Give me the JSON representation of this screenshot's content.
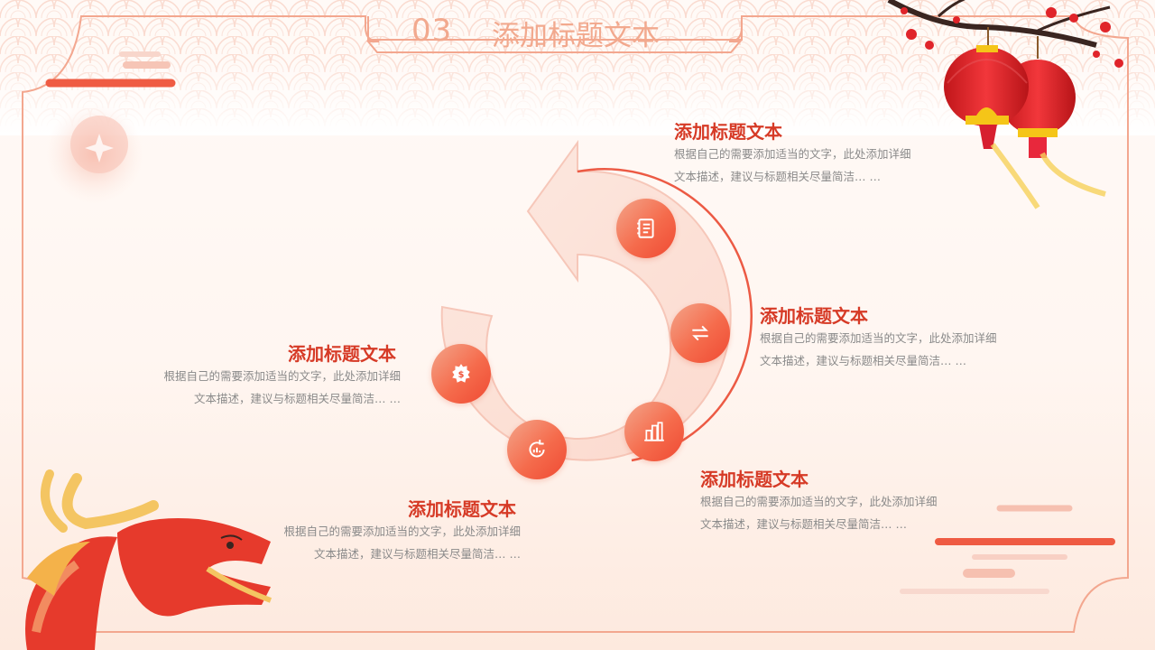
{
  "header": {
    "number": "03",
    "title": "添加标题文本"
  },
  "items": [
    {
      "title": "添加标题文本",
      "desc_line1": "根据自己的需要添加适当的文字，此处添加详细",
      "desc_line2": "文本描述，建议与标题相关尽量简洁… …"
    },
    {
      "title": "添加标题文本",
      "desc_line1": "根据自己的需要添加适当的文字，此处添加详细",
      "desc_line2": "文本描述，建议与标题相关尽量简洁… …"
    },
    {
      "title": "添加标题文本",
      "desc_line1": "根据自己的需要添加适当的文字，此处添加详细",
      "desc_line2": "文本描述，建议与标题相关尽量简洁… …"
    },
    {
      "title": "添加标题文本",
      "desc_line1": "根据自己的需要添加适当的文字，此处添加详细",
      "desc_line2": "文本描述，建议与标题相关尽量简洁… …"
    },
    {
      "title": "添加标题文本",
      "desc_line1": "根据自己的需要添加适当的文字，此处添加详细",
      "desc_line2": "文本描述，建议与标题相关尽量简洁… …"
    }
  ],
  "icons": [
    "notebook-icon",
    "swap-arrows-icon",
    "buildings-chart-icon",
    "refresh-chart-icon",
    "money-gear-icon"
  ],
  "colors": {
    "accent": "#d63a26",
    "frame": "#f08a72",
    "circle": "#f56b4c",
    "text": "#8a8a8a"
  }
}
